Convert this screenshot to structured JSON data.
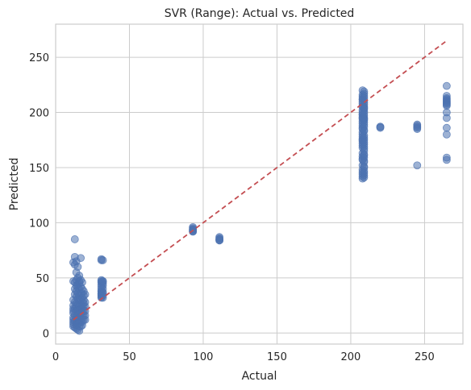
{
  "chart_data": {
    "type": "scatter",
    "title": "SVR (Range): Actual vs. Predicted",
    "xlabel": "Actual",
    "ylabel": "Predicted",
    "xlim": [
      0,
      276
    ],
    "ylim": [
      -10,
      280
    ],
    "xticks": [
      0,
      50,
      100,
      150,
      200,
      250
    ],
    "yticks": [
      0,
      50,
      100,
      150,
      200,
      250
    ],
    "grid": true,
    "colors": {
      "points": "#4c72b0",
      "reference_line": "#c44e52",
      "grid": "#cccccc"
    },
    "reference_line": {
      "x": [
        12,
        265
      ],
      "y": [
        12,
        265
      ],
      "style": "dashed"
    },
    "x": [
      12,
      12,
      12,
      12,
      12,
      12,
      12,
      12,
      12,
      12,
      12,
      12,
      13,
      13,
      13,
      13,
      13,
      13,
      13,
      13,
      13,
      13,
      13,
      14,
      14,
      14,
      14,
      14,
      14,
      14,
      14,
      14,
      14,
      14,
      14,
      14,
      14,
      15,
      15,
      15,
      15,
      15,
      15,
      15,
      15,
      15,
      15,
      15,
      15,
      15,
      16,
      16,
      16,
      16,
      16,
      16,
      16,
      16,
      16,
      16,
      16,
      16,
      16,
      16,
      17,
      17,
      17,
      17,
      17,
      17,
      17,
      17,
      17,
      17,
      17,
      18,
      18,
      18,
      18,
      18,
      18,
      18,
      18,
      18,
      18,
      18,
      18,
      19,
      19,
      19,
      19,
      19,
      19,
      19,
      19,
      20,
      20,
      20,
      20,
      20,
      20,
      31,
      31,
      31,
      31,
      31,
      31,
      31,
      31,
      31,
      31,
      31,
      31,
      31,
      31,
      31,
      31,
      32,
      32,
      32,
      32,
      32,
      32,
      32,
      32,
      32,
      32,
      93,
      93,
      93,
      93,
      93,
      93,
      93,
      93,
      111,
      111,
      111,
      111,
      111,
      111,
      208,
      208,
      208,
      208,
      208,
      208,
      208,
      208,
      208,
      208,
      208,
      208,
      208,
      208,
      208,
      208,
      208,
      208,
      208,
      208,
      208,
      208,
      208,
      208,
      208,
      208,
      208,
      208,
      208,
      208,
      208,
      208,
      208,
      208,
      208,
      208,
      208,
      208,
      208,
      208,
      209,
      209,
      209,
      209,
      209,
      209,
      209,
      209,
      209,
      209,
      209,
      209,
      209,
      209,
      209,
      209,
      209,
      209,
      209,
      209,
      209,
      209,
      209,
      209,
      209,
      209,
      209,
      209,
      209,
      209,
      209,
      209,
      209,
      209,
      209,
      209,
      209,
      209,
      209,
      209,
      220,
      220,
      220,
      245,
      245,
      245,
      245,
      245,
      245,
      265,
      265,
      265,
      265,
      265,
      265,
      265,
      265,
      265,
      265,
      265,
      265,
      265,
      265,
      265,
      265
    ],
    "y": [
      47,
      64,
      30,
      25,
      20,
      14,
      10,
      8,
      6,
      18,
      22,
      12,
      85,
      62,
      69,
      46,
      40,
      35,
      28,
      22,
      16,
      11,
      5,
      65,
      55,
      48,
      43,
      38,
      33,
      27,
      24,
      20,
      15,
      12,
      9,
      7,
      4,
      60,
      50,
      44,
      41,
      36,
      31,
      26,
      21,
      17,
      13,
      10,
      8,
      3,
      52,
      47,
      45,
      40,
      34,
      30,
      25,
      21,
      18,
      14,
      11,
      9,
      6,
      2,
      68,
      48,
      42,
      36,
      30,
      26,
      22,
      18,
      14,
      10,
      6,
      46,
      40,
      36,
      32,
      28,
      25,
      22,
      19,
      16,
      13,
      10,
      7,
      38,
      34,
      30,
      27,
      24,
      20,
      16,
      12,
      35,
      28,
      24,
      20,
      16,
      12,
      67,
      66,
      48,
      46,
      44,
      42,
      40,
      38,
      36,
      34,
      32,
      38,
      35,
      33,
      36,
      47,
      66,
      47,
      45,
      43,
      40,
      37,
      36,
      34,
      32,
      47,
      96,
      95,
      94,
      93,
      92,
      92,
      93,
      94,
      87,
      86,
      85,
      84,
      84,
      85,
      220,
      216,
      212,
      208,
      205,
      202,
      198,
      195,
      192,
      188,
      185,
      180,
      176,
      172,
      168,
      163,
      160,
      157,
      152,
      148,
      144,
      142,
      140,
      210,
      206,
      200,
      196,
      190,
      186,
      178,
      174,
      170,
      212,
      214,
      198,
      194,
      182,
      175,
      158,
      146,
      219,
      215,
      211,
      207,
      204,
      201,
      197,
      194,
      191,
      187,
      184,
      179,
      175,
      171,
      167,
      162,
      159,
      156,
      151,
      147,
      143,
      141,
      203,
      209,
      199,
      189,
      177,
      173,
      213,
      217,
      193,
      183,
      169,
      165,
      161,
      155,
      150,
      145,
      205,
      195,
      187,
      187,
      186,
      189,
      188,
      187,
      186,
      185,
      152,
      224,
      215,
      213,
      212,
      211,
      210,
      209,
      208,
      207,
      206,
      200,
      195,
      186,
      180,
      159,
      157
    ]
  }
}
